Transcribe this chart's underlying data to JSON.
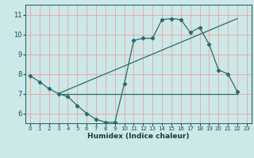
{
  "xlabel": "Humidex (Indice chaleur)",
  "ylabel": "",
  "bg_color": "#cce8e8",
  "grid_color": "#f0a0a0",
  "line_color": "#2a6b6b",
  "xlim": [
    -0.5,
    23.5
  ],
  "ylim": [
    5.5,
    11.5
  ],
  "yticks": [
    6,
    7,
    8,
    9,
    10,
    11
  ],
  "xticks": [
    0,
    1,
    2,
    3,
    4,
    5,
    6,
    7,
    8,
    9,
    10,
    11,
    12,
    13,
    14,
    15,
    16,
    17,
    18,
    19,
    20,
    21,
    22,
    23
  ],
  "curve1_x": [
    0,
    1,
    2,
    3,
    4,
    5,
    6,
    7,
    8,
    9,
    10,
    11,
    12,
    13,
    14,
    15,
    16,
    17,
    18,
    19,
    20,
    21,
    22
  ],
  "curve1_y": [
    7.9,
    7.6,
    7.25,
    7.0,
    6.85,
    6.4,
    6.0,
    5.7,
    5.55,
    5.55,
    7.5,
    9.7,
    9.8,
    9.8,
    10.75,
    10.8,
    10.75,
    10.1,
    10.35,
    9.5,
    8.2,
    8.0,
    7.1
  ],
  "curve2_x": [
    3,
    22
  ],
  "curve2_y": [
    7.0,
    10.8
  ],
  "curve3_x": [
    3,
    22
  ],
  "curve3_y": [
    7.0,
    7.0
  ]
}
